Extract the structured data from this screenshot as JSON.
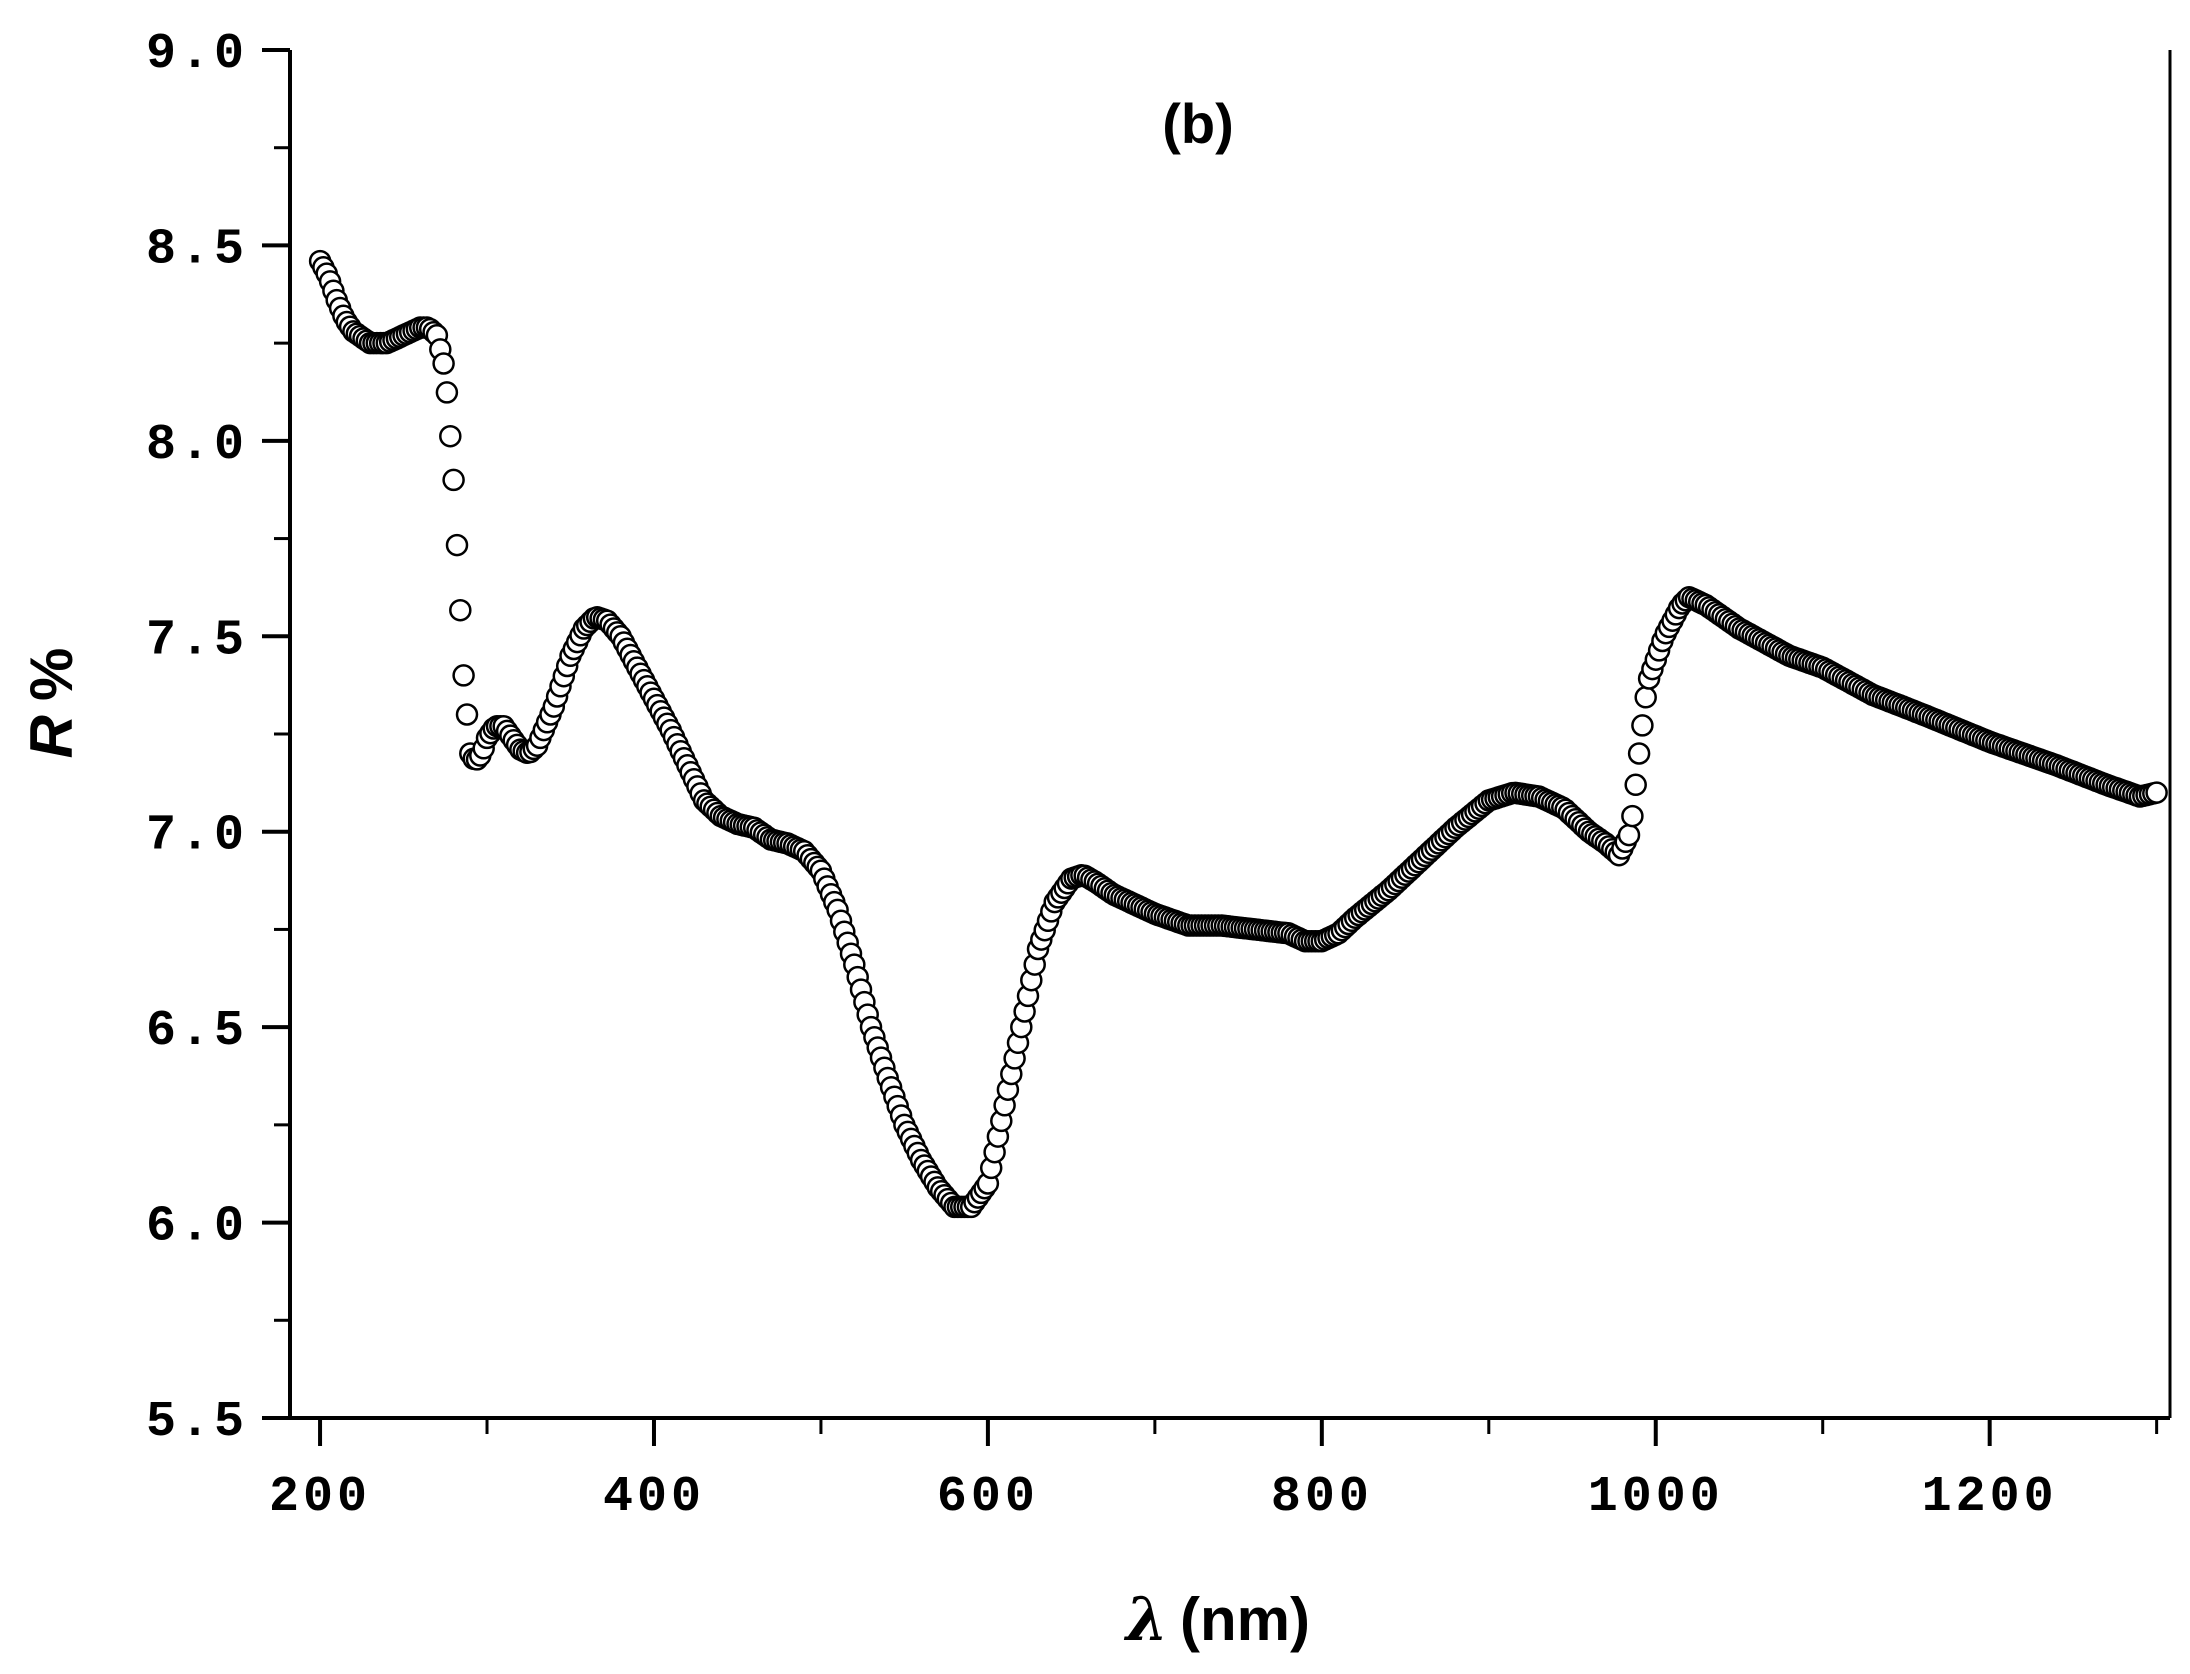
{
  "chart_data": {
    "type": "scatter",
    "panel_label": "(b)",
    "xlabel_symbol": "λ",
    "xlabel_unit": "(nm)",
    "ylabel_symbol": "R",
    "ylabel_unit": "%",
    "xlim": [
      182,
      1308
    ],
    "ylim": [
      5.5,
      9.0
    ],
    "x_ticks": [
      200,
      400,
      600,
      800,
      1000,
      1200
    ],
    "x_tick_labels": [
      "200",
      "400",
      "600",
      "800",
      "1000",
      "1200"
    ],
    "x_minor_step": 100,
    "y_ticks": [
      5.5,
      6.0,
      6.5,
      7.0,
      7.5,
      8.0,
      8.5,
      9.0
    ],
    "y_tick_labels": [
      "5.5",
      "6.0",
      "6.5",
      "7.0",
      "7.5",
      "8.0",
      "8.5",
      "9.0"
    ],
    "y_minor_step": 0.25,
    "marker": "open-circle",
    "colors": {
      "marker_edge": "#000000",
      "marker_fill": "#ffffff",
      "axis": "#000000"
    },
    "series": [
      {
        "points": [
          [
            200,
            8.46
          ],
          [
            205,
            8.42
          ],
          [
            210,
            8.36
          ],
          [
            215,
            8.31
          ],
          [
            220,
            8.28
          ],
          [
            230,
            8.25
          ],
          [
            240,
            8.25
          ],
          [
            250,
            8.27
          ],
          [
            260,
            8.29
          ],
          [
            265,
            8.29
          ],
          [
            270,
            8.27
          ],
          [
            275,
            8.18
          ],
          [
            280,
            7.9
          ],
          [
            283,
            7.65
          ],
          [
            286,
            7.4
          ],
          [
            290,
            7.2
          ],
          [
            293,
            7.18
          ],
          [
            297,
            7.2
          ],
          [
            300,
            7.24
          ],
          [
            305,
            7.27
          ],
          [
            310,
            7.27
          ],
          [
            315,
            7.24
          ],
          [
            320,
            7.21
          ],
          [
            325,
            7.2
          ],
          [
            330,
            7.22
          ],
          [
            340,
            7.32
          ],
          [
            350,
            7.45
          ],
          [
            358,
            7.52
          ],
          [
            365,
            7.55
          ],
          [
            372,
            7.54
          ],
          [
            380,
            7.5
          ],
          [
            390,
            7.42
          ],
          [
            400,
            7.34
          ],
          [
            410,
            7.26
          ],
          [
            420,
            7.17
          ],
          [
            430,
            7.08
          ],
          [
            440,
            7.04
          ],
          [
            450,
            7.02
          ],
          [
            460,
            7.01
          ],
          [
            470,
            6.98
          ],
          [
            480,
            6.97
          ],
          [
            490,
            6.95
          ],
          [
            500,
            6.9
          ],
          [
            510,
            6.8
          ],
          [
            520,
            6.66
          ],
          [
            530,
            6.5
          ],
          [
            540,
            6.37
          ],
          [
            550,
            6.25
          ],
          [
            560,
            6.16
          ],
          [
            570,
            6.09
          ],
          [
            580,
            6.04
          ],
          [
            590,
            6.04
          ],
          [
            600,
            6.1
          ],
          [
            610,
            6.3
          ],
          [
            620,
            6.5
          ],
          [
            630,
            6.7
          ],
          [
            640,
            6.82
          ],
          [
            650,
            6.88
          ],
          [
            657,
            6.89
          ],
          [
            665,
            6.87
          ],
          [
            675,
            6.84
          ],
          [
            690,
            6.81
          ],
          [
            700,
            6.79
          ],
          [
            720,
            6.76
          ],
          [
            740,
            6.76
          ],
          [
            760,
            6.75
          ],
          [
            780,
            6.74
          ],
          [
            790,
            6.72
          ],
          [
            800,
            6.72
          ],
          [
            810,
            6.74
          ],
          [
            820,
            6.78
          ],
          [
            840,
            6.85
          ],
          [
            860,
            6.93
          ],
          [
            880,
            7.01
          ],
          [
            900,
            7.08
          ],
          [
            915,
            7.1
          ],
          [
            930,
            7.09
          ],
          [
            945,
            7.06
          ],
          [
            960,
            7.0
          ],
          [
            970,
            6.97
          ],
          [
            978,
            6.94
          ],
          [
            985,
            7.0
          ],
          [
            990,
            7.2
          ],
          [
            995,
            7.38
          ],
          [
            1005,
            7.5
          ],
          [
            1015,
            7.58
          ],
          [
            1020,
            7.6
          ],
          [
            1030,
            7.58
          ],
          [
            1050,
            7.52
          ],
          [
            1080,
            7.45
          ],
          [
            1100,
            7.42
          ],
          [
            1130,
            7.35
          ],
          [
            1160,
            7.3
          ],
          [
            1200,
            7.23
          ],
          [
            1240,
            7.17
          ],
          [
            1270,
            7.12
          ],
          [
            1290,
            7.09
          ],
          [
            1300,
            7.1
          ]
        ]
      }
    ]
  }
}
